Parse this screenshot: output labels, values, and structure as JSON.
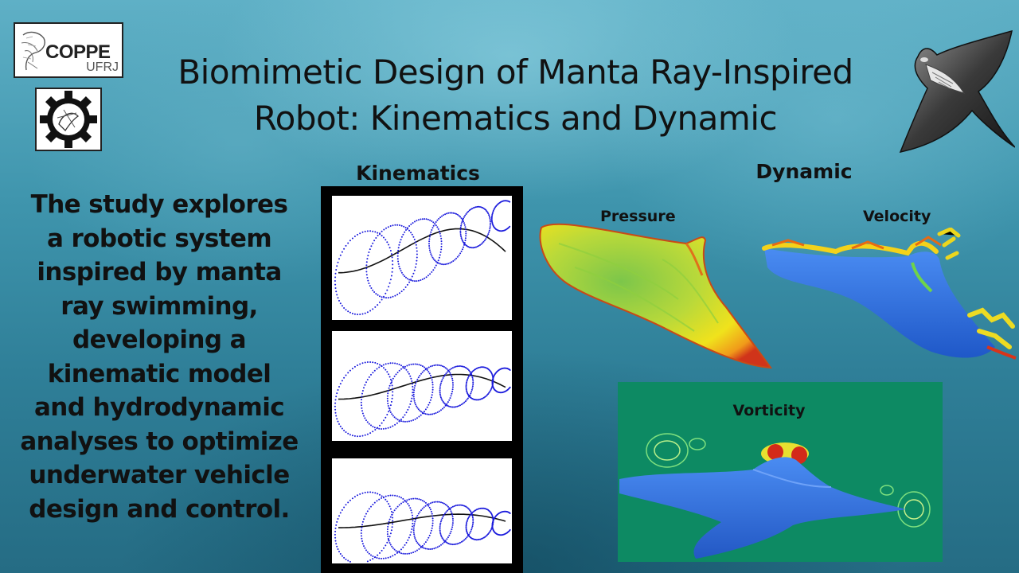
{
  "title": {
    "line1": "Biomimetic Design of Manta Ray-Inspired",
    "line2": "Robot: Kinematics and Dynamic"
  },
  "logos": {
    "coppe_name": "COPPE",
    "coppe_sub": "UFRJ",
    "gear_icon": "engineering-gear-emblem"
  },
  "description": [
    "The study explores",
    "a robotic system",
    "inspired by manta",
    "ray swimming,",
    "developing a",
    "kinematic model",
    "and hydrodynamic",
    "analyses to optimize",
    "underwater vehicle",
    "design and control."
  ],
  "sections": {
    "kinematics": "Kinematics",
    "dynamic": "Dynamic",
    "pressure": "Pressure",
    "velocity": "Velocity",
    "vorticity": "Vorticity"
  },
  "colors": {
    "trajectory": "#1a1adc",
    "path": "#111111",
    "vorticity_background": "#0d8a63",
    "body_blue": "#2f6fe0"
  }
}
